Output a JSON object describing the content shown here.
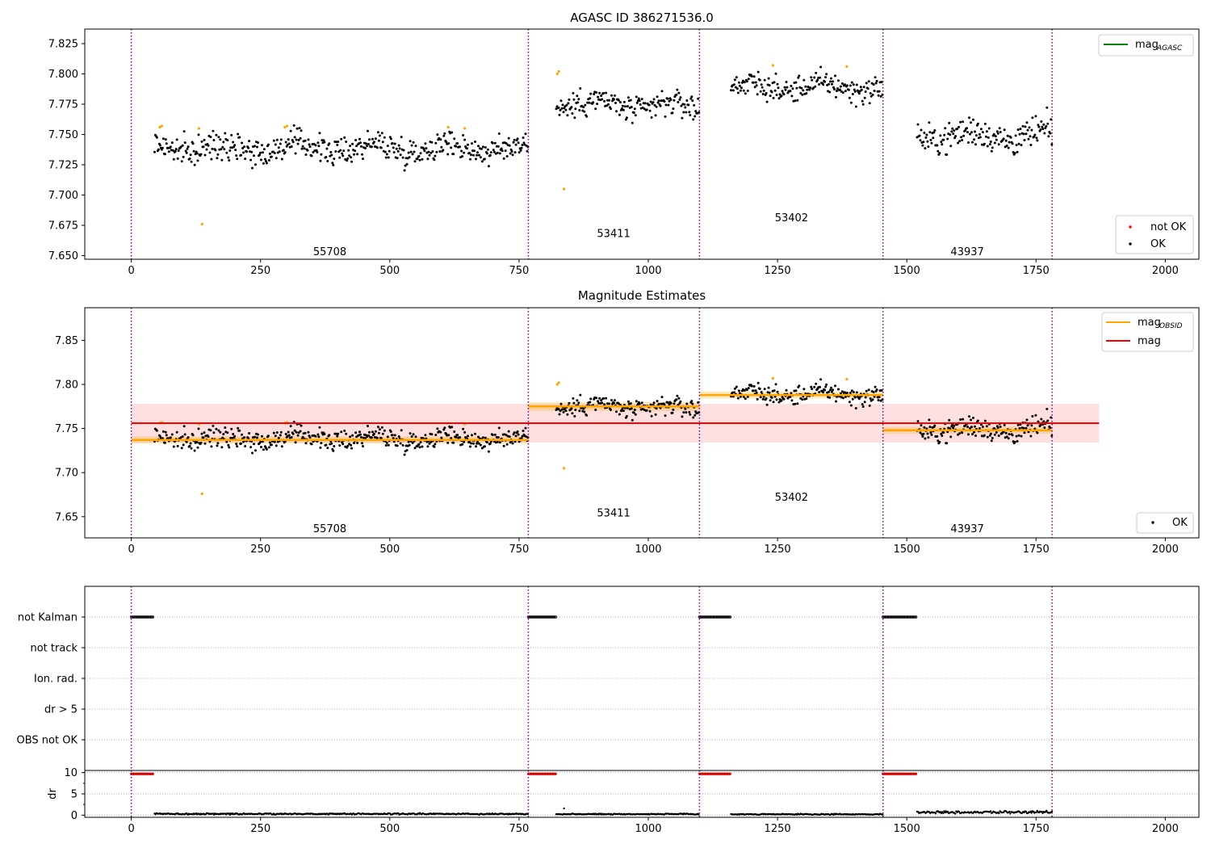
{
  "chart_data": [
    {
      "type": "scatter",
      "title": "AGASC ID 386271536.0",
      "xlim": [
        -90,
        2065
      ],
      "ylim": [
        7.647,
        7.837
      ],
      "xticks": [
        0,
        250,
        500,
        750,
        1000,
        1250,
        1500,
        1750,
        2000
      ],
      "yticks": [
        7.65,
        7.675,
        7.7,
        7.725,
        7.75,
        7.775,
        7.8,
        7.825
      ],
      "obsid_boundaries": [
        0,
        768,
        1099,
        1454,
        1781
      ],
      "obsid_labels": [
        {
          "text": "55708",
          "x": 384,
          "y": 7.653
        },
        {
          "text": "53411",
          "x": 933,
          "y": 7.668
        },
        {
          "text": "53402",
          "x": 1277,
          "y": 7.681
        },
        {
          "text": "43937",
          "x": 1617,
          "y": 7.653
        }
      ],
      "segments": [
        {
          "x0": 45,
          "x1": 768,
          "mean": 7.739,
          "spread": 0.0065,
          "trend": 0
        },
        {
          "x0": 822,
          "x1": 1099,
          "mean": 7.776,
          "spread": 0.0065,
          "trend": -0.004
        },
        {
          "x0": 1160,
          "x1": 1454,
          "mean": 7.789,
          "spread": 0.006,
          "trend": 0
        },
        {
          "x0": 1520,
          "x1": 1781,
          "mean": 7.749,
          "spread": 0.0075,
          "trend": 0
        }
      ],
      "not_ok_points": [
        [
          55,
          7.756
        ],
        [
          59,
          7.757
        ],
        [
          131,
          7.755
        ],
        [
          137,
          7.676
        ],
        [
          297,
          7.756
        ],
        [
          301,
          7.757
        ],
        [
          613,
          7.756
        ],
        [
          645,
          7.755
        ],
        [
          824,
          7.8
        ],
        [
          827,
          7.802
        ],
        [
          837,
          7.705
        ],
        [
          1241,
          7.807
        ],
        [
          1384,
          7.806
        ]
      ],
      "legend_upper": [
        {
          "name": "mag$_{AGASC}$",
          "label": "mag",
          "sub": "AGASC",
          "color": "#008000"
        }
      ],
      "legend_lower": [
        {
          "name": "not OK",
          "color": "#ff0000"
        },
        {
          "name": "OK",
          "color": "#000000"
        }
      ]
    },
    {
      "type": "scatter",
      "title": "Magnitude Estimates",
      "xlim": [
        -90,
        2065
      ],
      "ylim": [
        7.626,
        7.887
      ],
      "xticks": [
        0,
        250,
        500,
        750,
        1000,
        1250,
        1500,
        1750,
        2000
      ],
      "yticks": [
        7.65,
        7.7,
        7.75,
        7.8,
        7.85
      ],
      "obsid_labels": [
        {
          "text": "55708",
          "x": 384,
          "y": 7.636
        },
        {
          "text": "53411",
          "x": 933,
          "y": 7.654
        },
        {
          "text": "53402",
          "x": 1277,
          "y": 7.672
        },
        {
          "text": "43937",
          "x": 1617,
          "y": 7.636
        }
      ],
      "mag": {
        "value": 7.756,
        "band": [
          7.734,
          7.778
        ],
        "x0": 0,
        "x1": 1872,
        "color": "#ff0000"
      },
      "mag_obsid": [
        {
          "x0": 0,
          "x1": 768,
          "value": 7.737,
          "band": [
            7.733,
            7.741
          ]
        },
        {
          "x0": 768,
          "x1": 1099,
          "value": 7.775,
          "band": [
            7.77,
            7.78
          ]
        },
        {
          "x0": 1099,
          "x1": 1454,
          "value": 7.788,
          "band": [
            7.784,
            7.792
          ]
        },
        {
          "x0": 1454,
          "x1": 1781,
          "value": 7.748,
          "band": [
            7.744,
            7.752
          ]
        }
      ],
      "legend_upper": [
        {
          "label": "mag",
          "sub": "OBSID",
          "color": "#ffa500"
        },
        {
          "label": "mag",
          "sub": "",
          "color": "#ff0000"
        }
      ],
      "legend_lower": [
        {
          "name": "OK",
          "color": "#000000"
        }
      ]
    },
    {
      "type": "scatter",
      "xlim": [
        -90,
        2065
      ],
      "flag_labels": [
        "not Kalman",
        "not track",
        "Ion. rad.",
        "dr > 5",
        "OBS not OK"
      ],
      "not_kalman_ranges": [
        [
          0,
          42
        ],
        [
          768,
          822
        ],
        [
          1099,
          1160
        ],
        [
          1454,
          1520
        ]
      ]
    },
    {
      "type": "scatter",
      "xlim": [
        -90,
        2065
      ],
      "ylim": [
        -0.5,
        10.5
      ],
      "ylabel": "dr",
      "xticks": [
        0,
        250,
        500,
        750,
        1000,
        1250,
        1500,
        1750,
        2000
      ],
      "yticks": [
        0,
        5,
        10
      ],
      "high_dr_ranges": [
        [
          0,
          42
        ],
        [
          768,
          822
        ],
        [
          1099,
          1160
        ],
        [
          1454,
          1520
        ]
      ],
      "high_dr_value": 9.7,
      "low_dr_segments": [
        {
          "x0": 45,
          "x1": 768,
          "level": 0.3,
          "spread": 0.15
        },
        {
          "x0": 822,
          "x1": 1099,
          "level": 0.25,
          "spread": 0.12
        },
        {
          "x0": 1160,
          "x1": 1454,
          "level": 0.2,
          "spread": 0.12
        },
        {
          "x0": 1520,
          "x1": 1781,
          "level": 0.7,
          "spread": 0.3
        }
      ],
      "dr_outliers": [
        [
          837,
          1.6
        ]
      ]
    }
  ]
}
